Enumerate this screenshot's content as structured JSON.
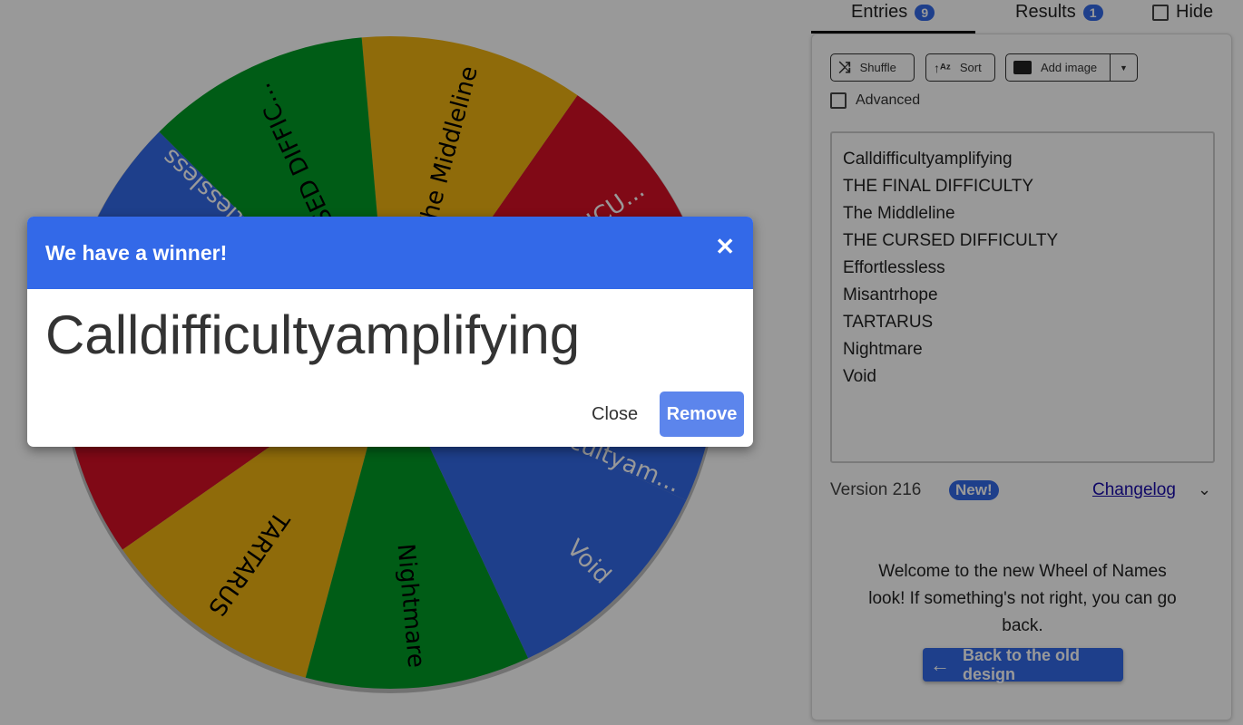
{
  "wheel": {
    "colors": {
      "blue": "#3369e8",
      "green": "#009925",
      "yellow": "#eeb211",
      "red": "#d50f25"
    },
    "segments": [
      {
        "label": "Calldifficultyam...",
        "color": "blue",
        "text": "#fff"
      },
      {
        "label": "THE FINAL DIFFICU...",
        "color": "red",
        "text": "#fff"
      },
      {
        "label": "The Middleline",
        "color": "yellow",
        "text": "#000"
      },
      {
        "label": "THE CURSED DIFFIC...",
        "color": "green",
        "text": "#000"
      },
      {
        "label": "Effortlessless",
        "color": "blue",
        "text": "#fff"
      },
      {
        "label": "Misantrhope",
        "color": "red",
        "text": "#fff"
      },
      {
        "label": "TARTARUS",
        "color": "yellow",
        "text": "#000"
      },
      {
        "label": "Nightmare",
        "color": "green",
        "text": "#000"
      },
      {
        "label": "Void",
        "color": "blue",
        "text": "#fff"
      }
    ]
  },
  "tabs": {
    "entries_label": "Entries",
    "entries_count": "9",
    "results_label": "Results",
    "results_count": "1",
    "hide_label": "Hide"
  },
  "toolbar": {
    "shuffle": "Shuffle",
    "sort": "Sort",
    "add_image": "Add image",
    "advanced": "Advanced"
  },
  "entries": [
    "Calldifficultyamplifying",
    "THE FINAL DIFFICULTY",
    "The Middleline",
    "THE CURSED DIFFICULTY",
    "Effortlessless",
    "Misantrhope",
    "TARTARUS",
    "Nightmare",
    "Void"
  ],
  "footer": {
    "version": "Version 216",
    "new_badge": "New!",
    "changelog": "Changelog",
    "welcome": "Welcome to the new Wheel of Names look! If something's not right, you can go back.",
    "back_button": "Back to the old design"
  },
  "dialog": {
    "title": "We have a winner!",
    "winner": "Calldifficultyamplifying",
    "close": "Close",
    "remove": "Remove"
  }
}
